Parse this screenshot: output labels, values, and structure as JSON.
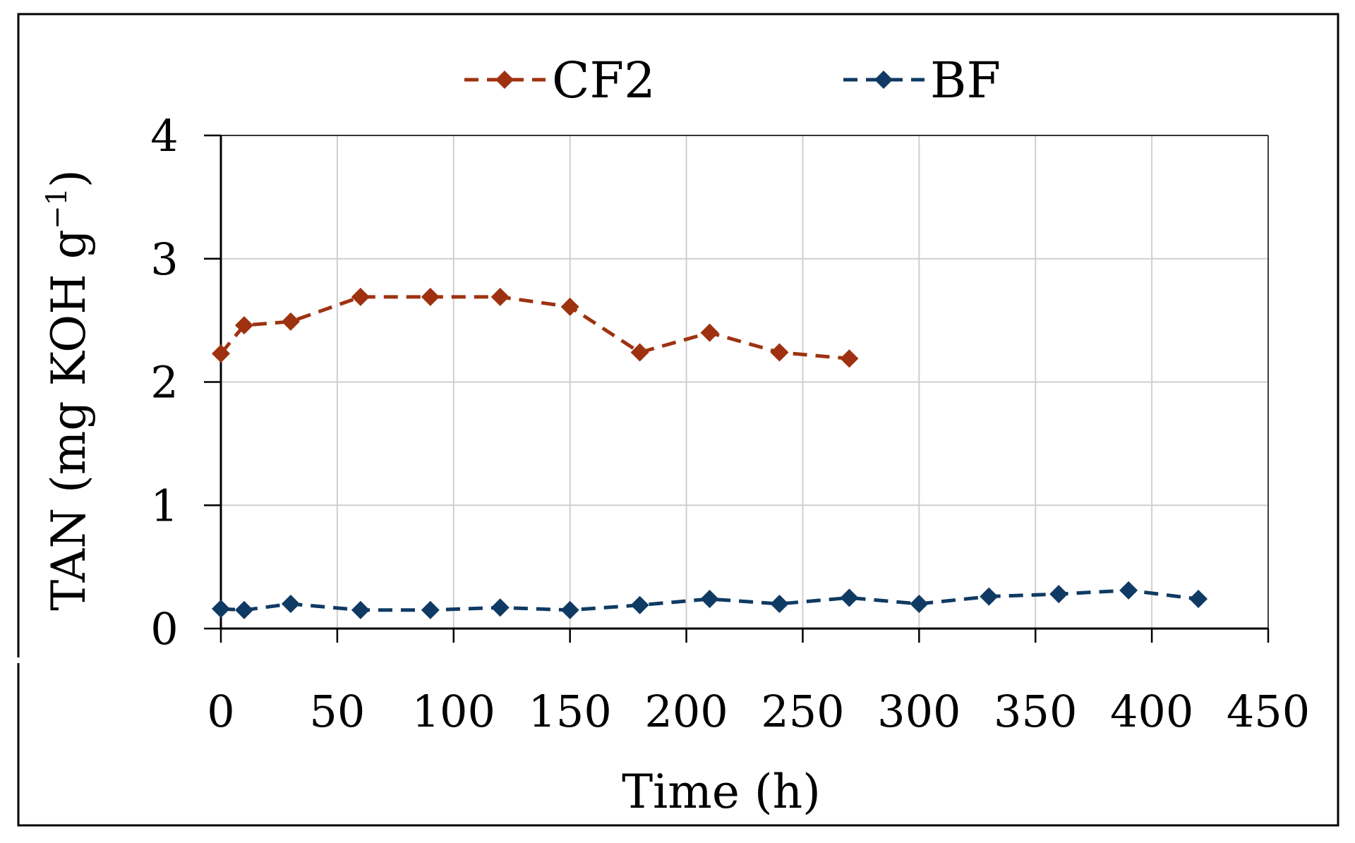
{
  "chart_data": {
    "type": "line",
    "title": "",
    "xlabel": "Time (h)",
    "ylabel_main": "TAN (mg KOH g",
    "ylabel_sup": "−1",
    "ylabel_close": ")",
    "xlim": [
      0,
      450
    ],
    "ylim": [
      0,
      4
    ],
    "xticks": [
      "0",
      "50",
      "100",
      "150",
      "200",
      "250",
      "300",
      "350",
      "400",
      "450"
    ],
    "yticks": [
      "0",
      "1",
      "2",
      "3",
      "4"
    ],
    "grid": true,
    "legend_position": "top",
    "series": [
      {
        "name": "CF2",
        "color": "#9e3210",
        "marker": "diamond",
        "linestyle": "dashed",
        "x": [
          0,
          10,
          30,
          60,
          90,
          120,
          150,
          180,
          210,
          240,
          270
        ],
        "y": [
          2.23,
          2.46,
          2.49,
          2.69,
          2.69,
          2.69,
          2.61,
          2.24,
          2.4,
          2.24,
          2.19
        ]
      },
      {
        "name": "BF",
        "color": "#0f3a63",
        "marker": "diamond",
        "linestyle": "dashed",
        "x": [
          0,
          10,
          30,
          60,
          90,
          120,
          150,
          180,
          210,
          240,
          270,
          300,
          330,
          360,
          390,
          420
        ],
        "y": [
          0.16,
          0.15,
          0.2,
          0.15,
          0.15,
          0.17,
          0.15,
          0.19,
          0.24,
          0.2,
          0.25,
          0.2,
          0.26,
          0.28,
          0.31,
          0.24
        ]
      }
    ]
  }
}
